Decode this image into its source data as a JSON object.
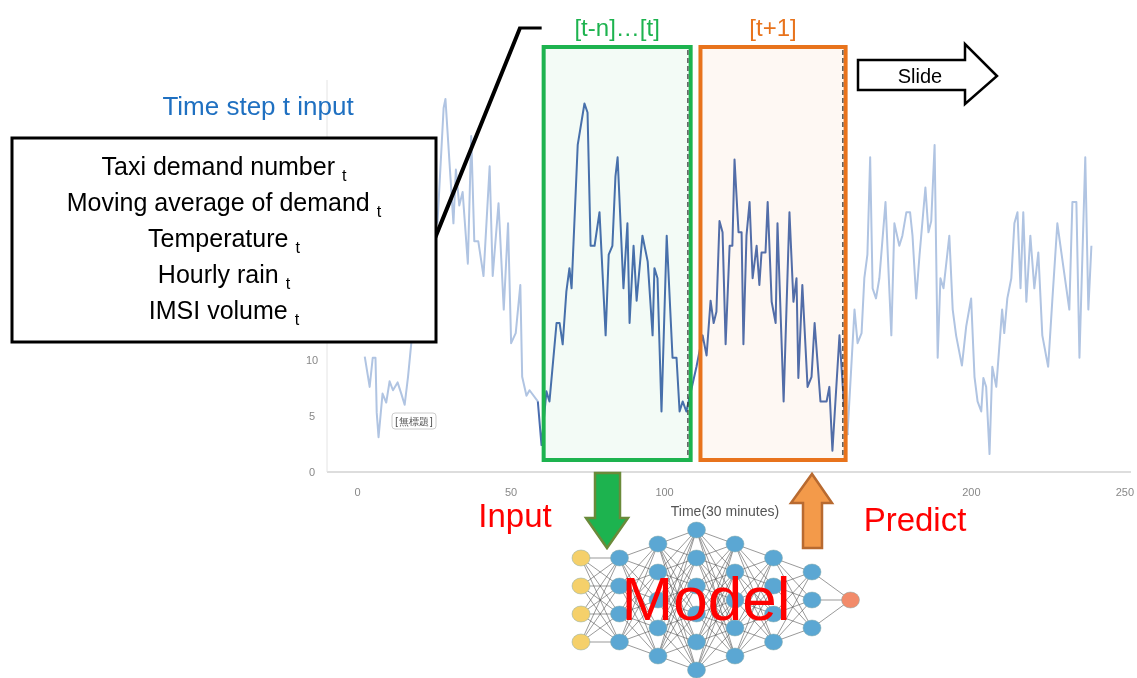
{
  "chart_data": {
    "type": "line",
    "xlabel": "Time(30 minutes)",
    "xlim": [
      -10,
      252
    ],
    "xticks": [
      0,
      50,
      100,
      200,
      250
    ],
    "ylim": [
      0,
      35
    ],
    "yticks": [
      0,
      5,
      10
    ],
    "grid": false,
    "marker": "none",
    "line_style": "solid",
    "series": [
      {
        "color": "#b0c4e2",
        "x": [
          2.3,
          3.9,
          4.9,
          5.8,
          6.2,
          6.8,
          8.1,
          9.3,
          10.4,
          11.5,
          13,
          14.2,
          15.3,
          16.4,
          17.5,
          null,
          26,
          28,
          28.6,
          29.9,
          31.2,
          32,
          33.1,
          34.2,
          35.9,
          37,
          38,
          39.3,
          41,
          43,
          44,
          45.9,
          47.6,
          49,
          50,
          51.5,
          53,
          53.6,
          55,
          56,
          58.7
        ],
        "values": [
          10.3,
          7.6,
          10.2,
          10.2,
          5.3,
          3.1,
          7,
          6.2,
          8.1,
          7.3,
          8,
          7,
          6,
          8.5,
          11.6,
          null,
          22.2,
          32.5,
          33.3,
          27.7,
          22.2,
          27,
          23.8,
          25,
          18.6,
          30,
          20.6,
          20.6,
          17.5,
          27.3,
          17.5,
          24,
          14.5,
          22.2,
          11.5,
          12.4,
          16.7,
          8.5,
          6.8,
          7.3,
          6.3
        ]
      },
      {
        "color": "#4a6db0",
        "x": [
          58.7,
          59.9,
          61.5,
          62.5,
          64.8,
          65.8,
          66.8,
          68,
          69,
          69.7,
          71.7,
          73.9,
          74.9,
          75.9,
          77.2,
          78.8,
          80.8,
          81.8,
          83,
          84,
          84.7,
          86.6,
          87.9,
          88.6,
          89.9,
          90.9,
          92.8,
          94.5,
          96.1,
          96.7,
          97.7,
          99,
          100.7,
          102.6,
          103.9,
          104.9,
          105.9,
          107.1,
          110.4,
          112.4,
          113.7,
          115,
          116,
          116.9,
          117.9,
          118.9,
          119.9,
          121.2,
          122.1,
          122.8,
          124.1,
          125.1,
          125.7,
          126.7,
          127.7,
          128.7,
          130,
          130.9,
          131.6,
          132.9,
          133.6,
          134.9,
          136.2,
          136.8,
          138.8,
          140.7,
          142,
          143,
          143.6,
          144.9,
          146.6,
          147.9,
          148.9,
          150.8,
          152.8,
          153.7,
          154.7,
          157,
          158.6,
          159.6
        ],
        "values": [
          6.3,
          2.4,
          7.2,
          6.3,
          13.3,
          13.3,
          11.4,
          16.1,
          18.2,
          16.4,
          29.2,
          32.9,
          32.1,
          20.2,
          20.2,
          23.2,
          12.2,
          19.4,
          20.2,
          26.4,
          28.1,
          16.4,
          22.2,
          13.3,
          20.2,
          15.3,
          21.1,
          18.8,
          12.2,
          18.2,
          17.3,
          5.4,
          21.1,
          10.2,
          10.2,
          5.4,
          6.3,
          5.4,
          9.4,
          12.2,
          10.4,
          15.3,
          13.3,
          14.3,
          22.4,
          21.4,
          11.4,
          20.2,
          20.2,
          27.9,
          21.4,
          21.4,
          11.4,
          21.1,
          24.1,
          17.3,
          20.2,
          16.7,
          19.6,
          19.6,
          24.1,
          15.2,
          13.3,
          22.2,
          6.3,
          23.2,
          15.2,
          17.3,
          8.4,
          16.7,
          7.6,
          8.5,
          13.3,
          6.3,
          6.3,
          7.6,
          1.9,
          12.2,
          5.4,
          3.3
        ]
      },
      {
        "color": "#b0c4e2",
        "x": [
          159.6,
          161.9,
          162.9,
          164.2,
          165.1,
          166.1,
          167,
          167.8,
          168.9,
          170,
          172,
          173.9,
          174.9,
          176.5,
          177.5,
          178.8,
          180,
          180.8,
          182,
          183.1,
          185,
          186,
          186.9,
          188,
          189,
          189.9,
          190.9,
          192.8,
          193.9,
          195,
          196.9,
          198.3,
          199.9,
          201,
          202,
          203.2,
          203.9,
          204.8,
          205.9,
          206.8,
          208.1,
          210,
          210.7,
          211.7,
          213,
          214,
          215,
          216,
          216.9,
          217.9,
          219.2,
          220.5,
          221.8,
          223.1,
          225,
          226.4,
          228,
          229,
          231.9,
          232.9,
          234.2,
          235.2,
          237.1,
          238.1,
          239.1
        ],
        "values": [
          3.3,
          14.5,
          11.5,
          12.4,
          17.3,
          19.4,
          28.1,
          16.4,
          15.5,
          17.3,
          24.1,
          12.2,
          22.2,
          20.2,
          21.1,
          23.2,
          23.2,
          21.1,
          15.5,
          19.4,
          25.4,
          21.4,
          22.4,
          29.2,
          10.2,
          17.3,
          16.4,
          21.1,
          14.5,
          12.2,
          9.5,
          13,
          15.5,
          8.5,
          6.3,
          5.4,
          8.4,
          7.6,
          1.6,
          9.4,
          7.6,
          14.5,
          12.4,
          15.5,
          17.3,
          22.2,
          23.2,
          16.4,
          23.2,
          15.2,
          21.1,
          16.4,
          19.6,
          12.2,
          9.4,
          15.5,
          22.2,
          20.2,
          14.5,
          24.1,
          24.1,
          10.2,
          28.1,
          14.5,
          20.2
        ]
      }
    ],
    "bands": [
      {
        "axis": "x",
        "from": 60.6,
        "to": 108.5,
        "label": "[t-n]…[t]",
        "color": "#1db34f"
      },
      {
        "axis": "x",
        "from": 111.7,
        "to": 159,
        "label": "[t+1]",
        "color": "#e8731c"
      }
    ],
    "ref_lines": [
      {
        "axis": "x",
        "value": 107.6,
        "color": "#333333",
        "line_style": "dashed"
      },
      {
        "axis": "x",
        "value": 158.1,
        "color": "#333333",
        "line_style": "dashed"
      }
    ],
    "annotations": [
      "Time step t input",
      "Taxi demand number $_{t}$",
      "Moving average of demand $_{t}$",
      "Temperature $_{t}$",
      "Hourly rain $_{t}$",
      "IMSI volume $_{t}$",
      "Slide",
      "Input",
      "Predict",
      "Model",
      "[無標題]"
    ]
  }
}
